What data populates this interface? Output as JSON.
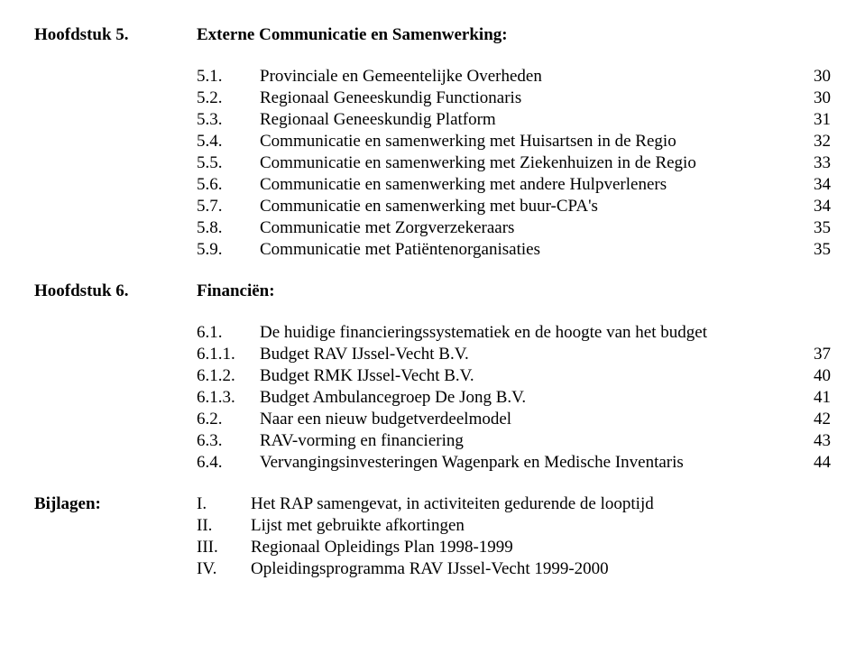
{
  "chapter5": {
    "label": "Hoofdstuk 5.",
    "title": "Externe Communicatie en Samenwerking:",
    "items": [
      {
        "num": "5.1.",
        "text": "Provinciale en Gemeentelijke Overheden",
        "page": "30"
      },
      {
        "num": "5.2.",
        "text": "Regionaal Geneeskundig Functionaris",
        "page": "30"
      },
      {
        "num": "5.3.",
        "text": "Regionaal Geneeskundig Platform",
        "page": "31"
      },
      {
        "num": "5.4.",
        "text": "Communicatie en samenwerking met Huisartsen in de Regio",
        "page": "32"
      },
      {
        "num": "5.5.",
        "text": "Communicatie en samenwerking met Ziekenhuizen in de Regio",
        "page": "33"
      },
      {
        "num": "5.6.",
        "text": "Communicatie en samenwerking met andere Hulpverleners",
        "page": "34"
      },
      {
        "num": "5.7.",
        "text": "Communicatie en samenwerking met buur-CPA's",
        "page": "34"
      },
      {
        "num": "5.8.",
        "text": "Communicatie met Zorgverzekeraars",
        "page": "35"
      },
      {
        "num": "5.9.",
        "text": "Communicatie met Patiëntenorganisaties",
        "page": "35"
      }
    ]
  },
  "chapter6": {
    "label": "Hoofdstuk 6.",
    "title": "Financiën:",
    "items": [
      {
        "num": "6.1.",
        "text": "De huidige financieringssystematiek en de hoogte van het budget",
        "page": ""
      },
      {
        "num": "6.1.1.",
        "text": "Budget RAV IJssel-Vecht B.V.",
        "page": "37"
      },
      {
        "num": "6.1.2.",
        "text": "Budget RMK IJssel-Vecht B.V.",
        "page": "40"
      },
      {
        "num": "6.1.3.",
        "text": "Budget Ambulancegroep De Jong B.V.",
        "page": "41"
      },
      {
        "num": "6.2.",
        "text": "Naar een nieuw budgetverdeelmodel",
        "page": "42"
      },
      {
        "num": "6.3.",
        "text": "RAV-vorming en financiering",
        "page": "43"
      },
      {
        "num": "6.4.",
        "text": "Vervangingsinvesteringen Wagenpark en Medische Inventaris",
        "page": "44"
      }
    ]
  },
  "appendix": {
    "label": "Bijlagen:",
    "items": [
      {
        "num": "I.",
        "text": "Het RAP samengevat, in activiteiten gedurende de looptijd"
      },
      {
        "num": "II.",
        "text": "Lijst met gebruikte afkortingen"
      },
      {
        "num": "III.",
        "text": "Regionaal Opleidings Plan 1998-1999"
      },
      {
        "num": "IV.",
        "text": "Opleidingsprogramma RAV IJssel-Vecht 1999-2000"
      }
    ]
  }
}
